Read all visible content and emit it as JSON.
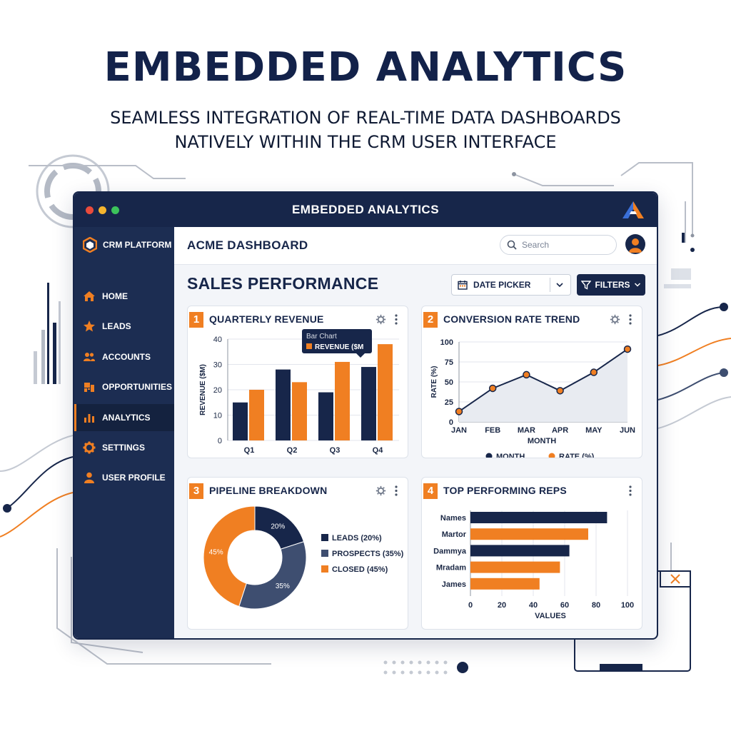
{
  "hero": {
    "title": "EMBEDDED ANALYTICS",
    "subtitle_line1": "SEAMLESS INTEGRATION OF REAL-TIME DATA DASHBOARDS",
    "subtitle_line2": "NATIVELY WITHIN THE CRM USER INTERFACE"
  },
  "window": {
    "title": "EMBEDDED ANALYTICS",
    "traffic_lights": [
      "#e94b3c",
      "#f5b52e",
      "#3cc35b"
    ]
  },
  "sidebar": {
    "brand": "CRM PLATFORM",
    "items": [
      {
        "label": "HOME",
        "icon": "home-icon",
        "active": false
      },
      {
        "label": "LEADS",
        "icon": "star-icon",
        "active": false
      },
      {
        "label": "ACCOUNTS",
        "icon": "users-icon",
        "active": false
      },
      {
        "label": "OPPORTUNITIES",
        "icon": "opportunity-icon",
        "active": false
      },
      {
        "label": "ANALYTICS",
        "icon": "bar-chart-icon",
        "active": true
      },
      {
        "label": "SETTINGS",
        "icon": "gear-icon",
        "active": false
      },
      {
        "label": "USER PROFILE",
        "icon": "user-icon",
        "active": false
      }
    ]
  },
  "header": {
    "page_title": "ACME DASHBOARD",
    "search_placeholder": "Search"
  },
  "toolbar": {
    "section_title": "SALES PERFORMANCE",
    "date_picker": "DATE PICKER",
    "filters": "FILTERS"
  },
  "colors": {
    "navy": "#17264a",
    "orange": "#f07f22",
    "slate": "#3e4e70"
  },
  "cards": [
    {
      "num": "1",
      "title": "QUARTERLY REVENUE"
    },
    {
      "num": "2",
      "title": "CONVERSION RATE TREND"
    },
    {
      "num": "3",
      "title": "PIPELINE BREAKDOWN"
    },
    {
      "num": "4",
      "title": "TOP PERFORMING REPS"
    }
  ],
  "chart_data": [
    {
      "type": "bar",
      "categories": [
        "Q1",
        "Q2",
        "Q3",
        "Q4"
      ],
      "series": [
        {
          "values": [
            15,
            28,
            19,
            29
          ],
          "color": "#17264a"
        },
        {
          "name": "REVENUE ($M",
          "values": [
            20,
            23,
            31,
            38
          ],
          "color": "#f07f22"
        }
      ],
      "ylabel": "REVENUE ($M)",
      "yticks": [
        0,
        10,
        20,
        30,
        40
      ],
      "ylim": [
        0,
        40
      ],
      "tooltip_title": "Bar Chart",
      "tooltip_series": "REVENUE ($M"
    },
    {
      "type": "line",
      "categories": [
        "JAN",
        "FEB",
        "MAR",
        "APR",
        "MAY",
        "JUN"
      ],
      "values": [
        13,
        42,
        59,
        39,
        62,
        91
      ],
      "xlabel": "MONTH",
      "ylabel": "RATE (%)",
      "yticks": [
        0,
        25,
        50,
        75,
        100
      ],
      "ylim": [
        0,
        100
      ],
      "legend": [
        "MONTH",
        "RATE (%)"
      ]
    },
    {
      "type": "pie",
      "slices": [
        {
          "label": "LEADS (20%)",
          "value": 20,
          "text": "20%",
          "color": "#17264a"
        },
        {
          "label": "PROSPECTS (35%)",
          "value": 35,
          "text": "35%",
          "color": "#3e4e70"
        },
        {
          "label": "CLOSED (45%)",
          "value": 45,
          "text": "45%",
          "color": "#f07f22"
        }
      ]
    },
    {
      "type": "bar",
      "orientation": "horizontal",
      "categories": [
        "Names",
        "Martor",
        "Dammya",
        "Mradam",
        "James"
      ],
      "values": [
        87,
        75,
        63,
        57,
        44
      ],
      "colors": [
        "#17264a",
        "#f07f22",
        "#17264a",
        "#f07f22",
        "#f07f22"
      ],
      "xlabel": "VALUES",
      "xticks": [
        0,
        20,
        40,
        60,
        80,
        100
      ],
      "xlim": [
        0,
        100
      ]
    }
  ]
}
